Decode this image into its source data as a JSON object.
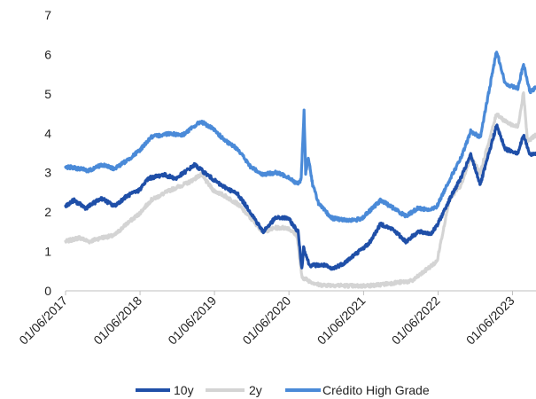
{
  "chart_data": {
    "type": "line",
    "title": "",
    "xlabel": "",
    "ylabel": "",
    "ylim": [
      0,
      7
    ],
    "yticks": [
      0,
      1,
      2,
      3,
      4,
      5,
      6,
      7
    ],
    "xlim": [
      "2017-01-06",
      "2023-05-01"
    ],
    "xticks": [
      "01/06/2017",
      "01/06/2018",
      "01/06/2019",
      "01/06/2020",
      "01/06/2021",
      "01/06/2022",
      "01/06/2023"
    ],
    "grid": false,
    "legend_position": "bottom",
    "series": [
      {
        "name": "10y",
        "color": "#1f4fa8",
        "points": [
          [
            "2017-01-06",
            2.15
          ],
          [
            "2017-02-15",
            2.3
          ],
          [
            "2017-04-15",
            2.1
          ],
          [
            "2017-07-01",
            2.35
          ],
          [
            "2017-09-01",
            2.15
          ],
          [
            "2017-11-01",
            2.4
          ],
          [
            "2018-01-01",
            2.55
          ],
          [
            "2018-02-15",
            2.85
          ],
          [
            "2018-05-01",
            2.95
          ],
          [
            "2018-07-01",
            2.85
          ],
          [
            "2018-10-01",
            3.2
          ],
          [
            "2018-12-01",
            2.95
          ],
          [
            "2019-02-01",
            2.7
          ],
          [
            "2019-05-01",
            2.45
          ],
          [
            "2019-07-01",
            2.0
          ],
          [
            "2019-09-01",
            1.5
          ],
          [
            "2019-11-01",
            1.85
          ],
          [
            "2020-01-01",
            1.85
          ],
          [
            "2020-02-20",
            1.5
          ],
          [
            "2020-03-09",
            0.55
          ],
          [
            "2020-03-18",
            1.1
          ],
          [
            "2020-04-15",
            0.65
          ],
          [
            "2020-07-01",
            0.65
          ],
          [
            "2020-08-01",
            0.55
          ],
          [
            "2020-10-01",
            0.7
          ],
          [
            "2020-12-01",
            0.95
          ],
          [
            "2021-02-01",
            1.2
          ],
          [
            "2021-03-31",
            1.7
          ],
          [
            "2021-06-01",
            1.55
          ],
          [
            "2021-08-01",
            1.25
          ],
          [
            "2021-10-01",
            1.5
          ],
          [
            "2021-12-01",
            1.45
          ],
          [
            "2022-01-01",
            1.65
          ],
          [
            "2022-03-01",
            2.3
          ],
          [
            "2022-05-01",
            2.9
          ],
          [
            "2022-06-15",
            3.45
          ],
          [
            "2022-08-01",
            2.7
          ],
          [
            "2022-10-20",
            4.2
          ],
          [
            "2022-12-01",
            3.6
          ],
          [
            "2023-02-01",
            3.5
          ],
          [
            "2023-03-01",
            3.95
          ],
          [
            "2023-04-01",
            3.45
          ],
          [
            "2023-05-01",
            3.5
          ]
        ]
      },
      {
        "name": "2y",
        "color": "#d4d4d4",
        "points": [
          [
            "2017-01-06",
            1.25
          ],
          [
            "2017-03-15",
            1.35
          ],
          [
            "2017-05-01",
            1.25
          ],
          [
            "2017-07-01",
            1.35
          ],
          [
            "2017-09-01",
            1.4
          ],
          [
            "2017-11-01",
            1.7
          ],
          [
            "2018-01-01",
            1.95
          ],
          [
            "2018-03-01",
            2.3
          ],
          [
            "2018-06-01",
            2.55
          ],
          [
            "2018-09-01",
            2.75
          ],
          [
            "2018-11-01",
            2.95
          ],
          [
            "2019-01-01",
            2.55
          ],
          [
            "2019-03-01",
            2.4
          ],
          [
            "2019-05-01",
            2.2
          ],
          [
            "2019-07-01",
            1.85
          ],
          [
            "2019-09-01",
            1.5
          ],
          [
            "2019-11-01",
            1.6
          ],
          [
            "2020-01-01",
            1.6
          ],
          [
            "2020-02-15",
            1.4
          ],
          [
            "2020-03-09",
            0.35
          ],
          [
            "2020-04-15",
            0.25
          ],
          [
            "2020-06-01",
            0.15
          ],
          [
            "2020-09-01",
            0.14
          ],
          [
            "2020-12-01",
            0.12
          ],
          [
            "2021-03-01",
            0.14
          ],
          [
            "2021-06-01",
            0.2
          ],
          [
            "2021-09-01",
            0.25
          ],
          [
            "2021-11-01",
            0.5
          ],
          [
            "2022-01-01",
            0.75
          ],
          [
            "2022-03-01",
            2.3
          ],
          [
            "2022-05-01",
            2.7
          ],
          [
            "2022-06-15",
            3.4
          ],
          [
            "2022-08-01",
            3.0
          ],
          [
            "2022-10-20",
            4.5
          ],
          [
            "2022-12-01",
            4.3
          ],
          [
            "2023-02-01",
            4.15
          ],
          [
            "2023-03-01",
            5.05
          ],
          [
            "2023-03-20",
            3.8
          ],
          [
            "2023-05-01",
            3.95
          ]
        ]
      },
      {
        "name": "Crédito High Grade",
        "color": "#4a8ad8",
        "points": [
          [
            "2017-01-06",
            3.15
          ],
          [
            "2017-03-15",
            3.1
          ],
          [
            "2017-05-01",
            3.05
          ],
          [
            "2017-07-01",
            3.2
          ],
          [
            "2017-09-01",
            3.1
          ],
          [
            "2017-11-01",
            3.3
          ],
          [
            "2018-01-01",
            3.55
          ],
          [
            "2018-03-01",
            3.9
          ],
          [
            "2018-06-01",
            4.0
          ],
          [
            "2018-08-01",
            3.95
          ],
          [
            "2018-11-01",
            4.3
          ],
          [
            "2019-01-01",
            4.1
          ],
          [
            "2019-03-01",
            3.8
          ],
          [
            "2019-05-01",
            3.6
          ],
          [
            "2019-07-01",
            3.15
          ],
          [
            "2019-09-01",
            2.95
          ],
          [
            "2019-11-01",
            3.0
          ],
          [
            "2020-01-01",
            2.9
          ],
          [
            "2020-02-20",
            2.7
          ],
          [
            "2020-03-06",
            2.85
          ],
          [
            "2020-03-20",
            4.55
          ],
          [
            "2020-03-28",
            3.0
          ],
          [
            "2020-04-10",
            3.4
          ],
          [
            "2020-05-01",
            2.7
          ],
          [
            "2020-06-01",
            2.2
          ],
          [
            "2020-08-01",
            1.85
          ],
          [
            "2020-10-01",
            1.8
          ],
          [
            "2020-12-01",
            1.8
          ],
          [
            "2021-01-01",
            1.85
          ],
          [
            "2021-03-31",
            2.3
          ],
          [
            "2021-06-01",
            2.1
          ],
          [
            "2021-08-01",
            1.9
          ],
          [
            "2021-10-01",
            2.1
          ],
          [
            "2021-12-01",
            2.05
          ],
          [
            "2022-01-01",
            2.15
          ],
          [
            "2022-03-01",
            2.8
          ],
          [
            "2022-05-01",
            3.4
          ],
          [
            "2022-06-15",
            4.05
          ],
          [
            "2022-08-01",
            3.9
          ],
          [
            "2022-10-20",
            6.1
          ],
          [
            "2022-12-01",
            5.25
          ],
          [
            "2023-02-01",
            5.15
          ],
          [
            "2023-03-01",
            5.75
          ],
          [
            "2023-04-01",
            5.05
          ],
          [
            "2023-05-01",
            5.15
          ]
        ]
      }
    ]
  }
}
